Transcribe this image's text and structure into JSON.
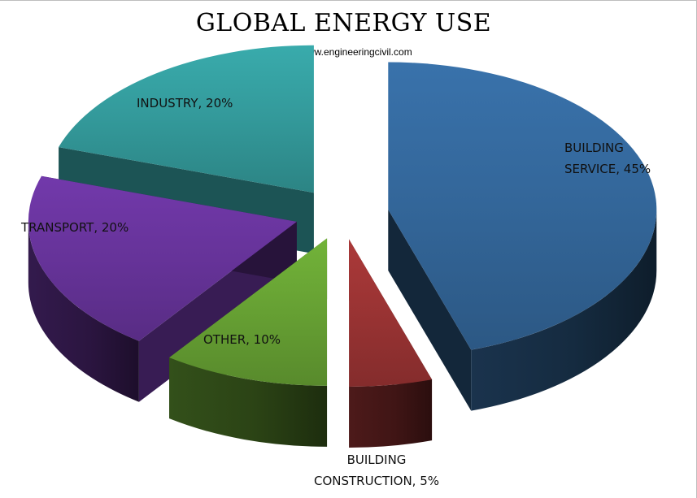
{
  "title": "GLOBAL ENERGY USE",
  "subtitle": "www.engineeringcivil.com",
  "chart_data": {
    "type": "pie",
    "title": "GLOBAL ENERGY USE",
    "style": "3d-exploded",
    "slices": [
      {
        "name": "BUILDING SERVICE",
        "value": 45,
        "label_lines": [
          "BUILDING",
          "SERVICE, 45%"
        ],
        "color": "#336699"
      },
      {
        "name": "BUILDING CONSTRUCTION",
        "value": 5,
        "label_lines": [
          "BUILDING",
          "CONSTRUCTION, 5%"
        ],
        "color": "#993333"
      },
      {
        "name": "OTHER",
        "value": 10,
        "label_lines": [
          "OTHER, 10%"
        ],
        "color": "#66A033"
      },
      {
        "name": "TRANSPORT",
        "value": 20,
        "label_lines": [
          "TRANSPORT, 20%"
        ],
        "color": "#663399"
      },
      {
        "name": "INDUSTRY",
        "value": 20,
        "label_lines": [
          "INDUSTRY, 20%"
        ],
        "color": "#33999A"
      }
    ]
  }
}
